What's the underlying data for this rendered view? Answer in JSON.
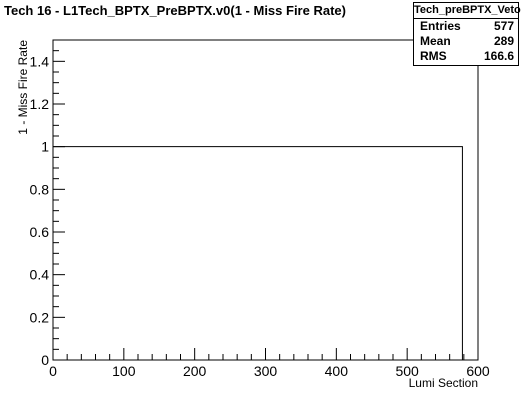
{
  "chart_data": {
    "type": "bar",
    "title": "Tech 16 - L1Tech_BPTX_PreBPTX.v0(1 - Miss Fire Rate)",
    "xlabel": "Lumi Section",
    "ylabel": "1 - Miss Fire Rate",
    "xlim": [
      0,
      600
    ],
    "ylim": [
      0,
      1.5
    ],
    "xticks": [
      0,
      100,
      200,
      300,
      400,
      500,
      600
    ],
    "yticks": [
      0,
      0.2,
      0.4,
      0.6,
      0.8,
      1,
      1.2,
      1.4
    ],
    "xtick_labels": [
      "0",
      "100",
      "200",
      "300",
      "400",
      "500",
      "600"
    ],
    "ytick_labels": [
      "0",
      "0.2",
      "0.4",
      "0.6",
      "0.8",
      "1",
      "1.2",
      "1.4"
    ],
    "series": [
      {
        "x_range": [
          0,
          578
        ],
        "value": 1
      }
    ],
    "grid": false,
    "legend": "none"
  },
  "stats_box": {
    "title": "Tech_preBPTX_Veto",
    "rows": [
      {
        "label": "Entries",
        "value": "577"
      },
      {
        "label": "Mean",
        "value": "289"
      },
      {
        "label": "RMS",
        "value": "166.6"
      }
    ]
  }
}
